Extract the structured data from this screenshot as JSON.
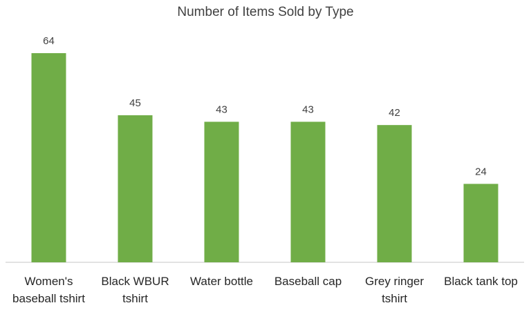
{
  "chart_data": {
    "type": "bar",
    "title": "Number of Items Sold by Type",
    "categories": [
      "Women's baseball tshirt",
      "Black WBUR tshirt",
      "Water bottle",
      "Baseball cap",
      "Grey ringer tshirt",
      "Black tank top"
    ],
    "values": [
      64,
      45,
      43,
      43,
      42,
      24
    ],
    "color": "#70ad47",
    "ylim": [
      0,
      64
    ]
  }
}
